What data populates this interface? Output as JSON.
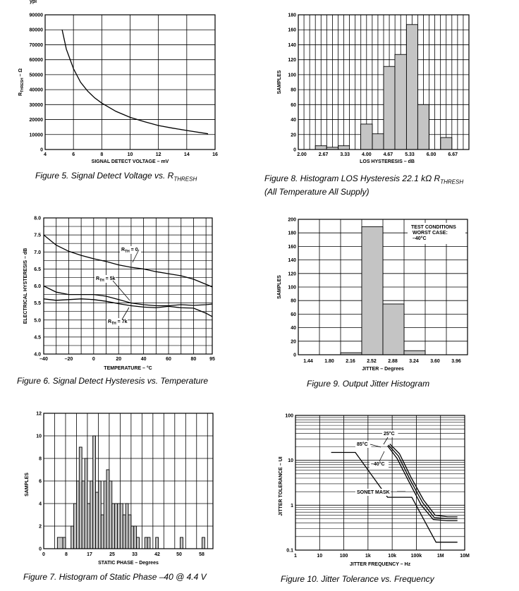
{
  "header_fragment": "ypi",
  "chart_data": [
    {
      "id": "fig5",
      "type": "line",
      "caption": "Figure 5. Signal Detect Voltage vs. R",
      "caption_sub": "THRESH",
      "xlabel": "SIGNAL DETECT VOLTAGE – mV",
      "ylabel": "R",
      "ylabel_sub": "THRESH",
      "ylabel_unit": " – Ω",
      "xlim": [
        4,
        16
      ],
      "ylim": [
        0,
        90000
      ],
      "xticks": [
        4,
        6,
        8,
        10,
        12,
        14,
        16
      ],
      "yticks": [
        0,
        10000,
        20000,
        30000,
        40000,
        50000,
        60000,
        70000,
        80000,
        90000
      ],
      "xtick_labels": [
        "4",
        "6",
        "8",
        "10",
        "12",
        "14",
        "16"
      ],
      "ytick_labels": [
        "0",
        "10000",
        "20000",
        "30000",
        "40000",
        "50000",
        "60000",
        "70000",
        "80000",
        "90000"
      ],
      "grid": true,
      "series": [
        {
          "x": [
            5.2,
            5.5,
            6,
            6.5,
            7,
            7.5,
            8,
            9,
            10,
            11,
            12,
            13,
            14,
            15.5
          ],
          "y": [
            80000,
            67000,
            54000,
            45000,
            39000,
            34500,
            31000,
            25500,
            21500,
            18600,
            16000,
            14300,
            12700,
            10500
          ]
        }
      ]
    },
    {
      "id": "fig8",
      "type": "bar",
      "caption": "Figure 8. Histogram LOS Hysteresis 22.1 kΩ R",
      "caption_sub": "THRESH",
      "caption_line2": "(All Temperature All Supply)",
      "xlabel": "LOS HYSTERESIS – dB",
      "ylabel": "SAMPLES",
      "xlim": [
        2.0,
        7.0
      ],
      "ylim": [
        0,
        180
      ],
      "xtick_labels": [
        "2.00",
        "2.67",
        "3.33",
        "4.00",
        "4.67",
        "5.33",
        "6.00",
        "6.67"
      ],
      "yticks": [
        0,
        20,
        40,
        60,
        80,
        100,
        120,
        140,
        160,
        180
      ],
      "ytick_labels": [
        "0",
        "20",
        "40",
        "60",
        "80",
        "100",
        "120",
        "140",
        "160",
        "180"
      ],
      "grid": true,
      "bins": [
        {
          "x0": 2.5,
          "x1": 2.83,
          "value": 5
        },
        {
          "x0": 2.83,
          "x1": 3.17,
          "value": 3
        },
        {
          "x0": 3.17,
          "x1": 3.5,
          "value": 5
        },
        {
          "x0": 3.83,
          "x1": 4.17,
          "value": 34
        },
        {
          "x0": 4.17,
          "x1": 4.5,
          "value": 21
        },
        {
          "x0": 4.5,
          "x1": 4.83,
          "value": 111
        },
        {
          "x0": 4.83,
          "x1": 5.17,
          "value": 127
        },
        {
          "x0": 5.17,
          "x1": 5.5,
          "value": 167
        },
        {
          "x0": 5.5,
          "x1": 5.83,
          "value": 60
        },
        {
          "x0": 6.17,
          "x1": 6.5,
          "value": 16
        }
      ]
    },
    {
      "id": "fig6",
      "type": "line",
      "caption": "Figure 6. Signal Detect Hysteresis vs. Temperature",
      "xlabel": "TEMPERATURE – °C",
      "ylabel": "ELECTRICAL HYSTERESIS – dB",
      "xlim": [
        -40,
        95
      ],
      "ylim": [
        4.0,
        8.0
      ],
      "xticks": [
        -40,
        -20,
        0,
        20,
        40,
        60,
        80,
        95
      ],
      "xtick_labels": [
        "–40",
        "–20",
        "0",
        "20",
        "40",
        "60",
        "80",
        "95"
      ],
      "yticks": [
        4.0,
        4.5,
        5.0,
        5.5,
        6.0,
        6.5,
        7.0,
        7.5,
        8.0
      ],
      "ytick_labels": [
        "4.0",
        "4.5",
        "5.0",
        "5.5",
        "6.0",
        "6.5",
        "7.0",
        "7.5",
        "8.0"
      ],
      "grid": true,
      "series": [
        {
          "name": "R",
          "name_sub": "TH",
          "name_value": " = 0",
          "x": [
            -40,
            -30,
            -20,
            -10,
            0,
            10,
            20,
            30,
            40,
            50,
            60,
            70,
            80,
            90,
            95
          ],
          "y": [
            7.5,
            7.2,
            7.02,
            6.9,
            6.8,
            6.72,
            6.62,
            6.55,
            6.5,
            6.42,
            6.36,
            6.3,
            6.2,
            6.05,
            5.97
          ]
        },
        {
          "name": "R",
          "name_sub": "TH",
          "name_value": " = 5k",
          "x": [
            -40,
            -30,
            -20,
            0,
            10,
            20,
            30,
            40,
            50,
            60,
            70,
            80,
            90,
            95
          ],
          "y": [
            6.0,
            5.82,
            5.75,
            5.75,
            5.7,
            5.6,
            5.5,
            5.45,
            5.42,
            5.42,
            5.45,
            5.43,
            5.45,
            5.47
          ]
        },
        {
          "name": "R",
          "name_sub": "TH",
          "name_value": " = 7k",
          "x": [
            -40,
            -30,
            -20,
            -10,
            0,
            10,
            20,
            30,
            40,
            50,
            60,
            70,
            80,
            90,
            95
          ],
          "y": [
            5.62,
            5.58,
            5.6,
            5.62,
            5.6,
            5.55,
            5.48,
            5.42,
            5.38,
            5.36,
            5.4,
            5.36,
            5.35,
            5.2,
            5.1
          ]
        }
      ]
    },
    {
      "id": "fig9",
      "type": "bar",
      "caption": "Figure 9. Output Jitter Histogram",
      "xlabel": "JITTER – Degrees",
      "ylabel": "SAMPLES",
      "xlim": [
        1.26,
        4.14
      ],
      "ylim": [
        0,
        200
      ],
      "xtick_labels": [
        "1.44",
        "1.80",
        "2.16",
        "2.52",
        "2.88",
        "3.24",
        "3.60",
        "3.96"
      ],
      "yticks": [
        0,
        20,
        40,
        60,
        80,
        100,
        120,
        140,
        160,
        180,
        200
      ],
      "ytick_labels": [
        "0",
        "20",
        "40",
        "60",
        "80",
        "100",
        "120",
        "140",
        "160",
        "180",
        "200"
      ],
      "grid": true,
      "bins": [
        {
          "x0": 1.98,
          "x1": 2.34,
          "value": 3
        },
        {
          "x0": 2.34,
          "x1": 2.7,
          "value": 189
        },
        {
          "x0": 2.7,
          "x1": 3.06,
          "value": 75
        },
        {
          "x0": 3.06,
          "x1": 3.42,
          "value": 6
        }
      ],
      "annotation": [
        "TEST CONDITIONS",
        "WORST CASE:",
        "–40°C"
      ]
    },
    {
      "id": "fig7",
      "type": "bar",
      "caption": "Figure 7. Histogram of Static Phase –40 @ 4.4 V",
      "xlabel": "STATIC PHASE – Degrees",
      "ylabel": "SAMPLES",
      "xlim": [
        0,
        62
      ],
      "ylim": [
        0,
        12
      ],
      "xtick_labels": [
        "0",
        "8",
        "17",
        "25",
        "33",
        "42",
        "50",
        "58"
      ],
      "yticks": [
        0,
        2,
        4,
        6,
        8,
        10,
        12
      ],
      "ytick_labels": [
        "0",
        "2",
        "4",
        "6",
        "8",
        "10",
        "12"
      ],
      "grid": true,
      "bins": [
        {
          "x0": 5,
          "x1": 7,
          "value": 1
        },
        {
          "x0": 7,
          "x1": 8,
          "value": 1
        },
        {
          "x0": 10,
          "x1": 11,
          "value": 2
        },
        {
          "x0": 11,
          "x1": 12,
          "value": 4
        },
        {
          "x0": 12,
          "x1": 13,
          "value": 6
        },
        {
          "x0": 13,
          "x1": 14,
          "value": 9
        },
        {
          "x0": 14,
          "x1": 15,
          "value": 6
        },
        {
          "x0": 15,
          "x1": 16,
          "value": 8
        },
        {
          "x0": 16,
          "x1": 17,
          "value": 4
        },
        {
          "x0": 17,
          "x1": 18,
          "value": 6
        },
        {
          "x0": 18,
          "x1": 19,
          "value": 10
        },
        {
          "x0": 19,
          "x1": 20,
          "value": 5
        },
        {
          "x0": 20,
          "x1": 21,
          "value": 6
        },
        {
          "x0": 21,
          "x1": 22,
          "value": 3
        },
        {
          "x0": 22,
          "x1": 23,
          "value": 6
        },
        {
          "x0": 23,
          "x1": 24,
          "value": 7
        },
        {
          "x0": 24,
          "x1": 25,
          "value": 6
        },
        {
          "x0": 25,
          "x1": 26,
          "value": 4
        },
        {
          "x0": 26,
          "x1": 27,
          "value": 4
        },
        {
          "x0": 27,
          "x1": 28,
          "value": 4
        },
        {
          "x0": 28,
          "x1": 29,
          "value": 4
        },
        {
          "x0": 29,
          "x1": 30,
          "value": 3
        },
        {
          "x0": 30,
          "x1": 31,
          "value": 4
        },
        {
          "x0": 31,
          "x1": 32,
          "value": 3
        },
        {
          "x0": 32,
          "x1": 33,
          "value": 2
        },
        {
          "x0": 33,
          "x1": 34,
          "value": 2
        },
        {
          "x0": 34,
          "x1": 35,
          "value": 1
        },
        {
          "x0": 37,
          "x1": 38,
          "value": 1
        },
        {
          "x0": 38,
          "x1": 39,
          "value": 1
        },
        {
          "x0": 41,
          "x1": 42,
          "value": 1
        },
        {
          "x0": 50,
          "x1": 51,
          "value": 1
        },
        {
          "x0": 58,
          "x1": 59,
          "value": 1
        }
      ]
    },
    {
      "id": "fig10",
      "type": "line",
      "caption": "Figure 10. Jitter Tolerance vs. Frequency",
      "xlabel": "JITTER FREQUENCY – Hz",
      "ylabel": "JITTER TOLERANCE – UI",
      "xscale": "log",
      "yscale": "log",
      "xlim": [
        1,
        10000000
      ],
      "ylim": [
        0.1,
        100
      ],
      "xticks": [
        1,
        10,
        100,
        1000,
        10000,
        100000,
        1000000,
        10000000
      ],
      "xtick_labels": [
        "1",
        "10",
        "100",
        "1k",
        "10k",
        "100k",
        "1M",
        "10M"
      ],
      "yticks": [
        0.1,
        1,
        10,
        100
      ],
      "ytick_labels": [
        "0.1",
        "1",
        "10",
        "100"
      ],
      "grid": true,
      "series": [
        {
          "name": "SONET MASK",
          "x": [
            30,
            300,
            6500,
            65000,
            650000,
            5000000
          ],
          "y": [
            15,
            15,
            1.5,
            1.5,
            0.15,
            0.15
          ]
        },
        {
          "name": "25°C",
          "x": [
            8000,
            20000,
            60000,
            200000,
            600000,
            2000000,
            5000000
          ],
          "y": [
            23,
            14,
            4.2,
            1.3,
            0.6,
            0.55,
            0.55
          ]
        },
        {
          "name": "85°C",
          "x": [
            7000,
            18000,
            55000,
            180000,
            550000,
            2000000,
            5000000
          ],
          "y": [
            22,
            12.5,
            3.7,
            1.15,
            0.53,
            0.5,
            0.5
          ]
        },
        {
          "name": "–40°C",
          "x": [
            6500,
            16000,
            50000,
            160000,
            500000,
            2000000,
            5000000
          ],
          "y": [
            21,
            11,
            3.3,
            1.0,
            0.48,
            0.45,
            0.45
          ]
        }
      ]
    }
  ]
}
